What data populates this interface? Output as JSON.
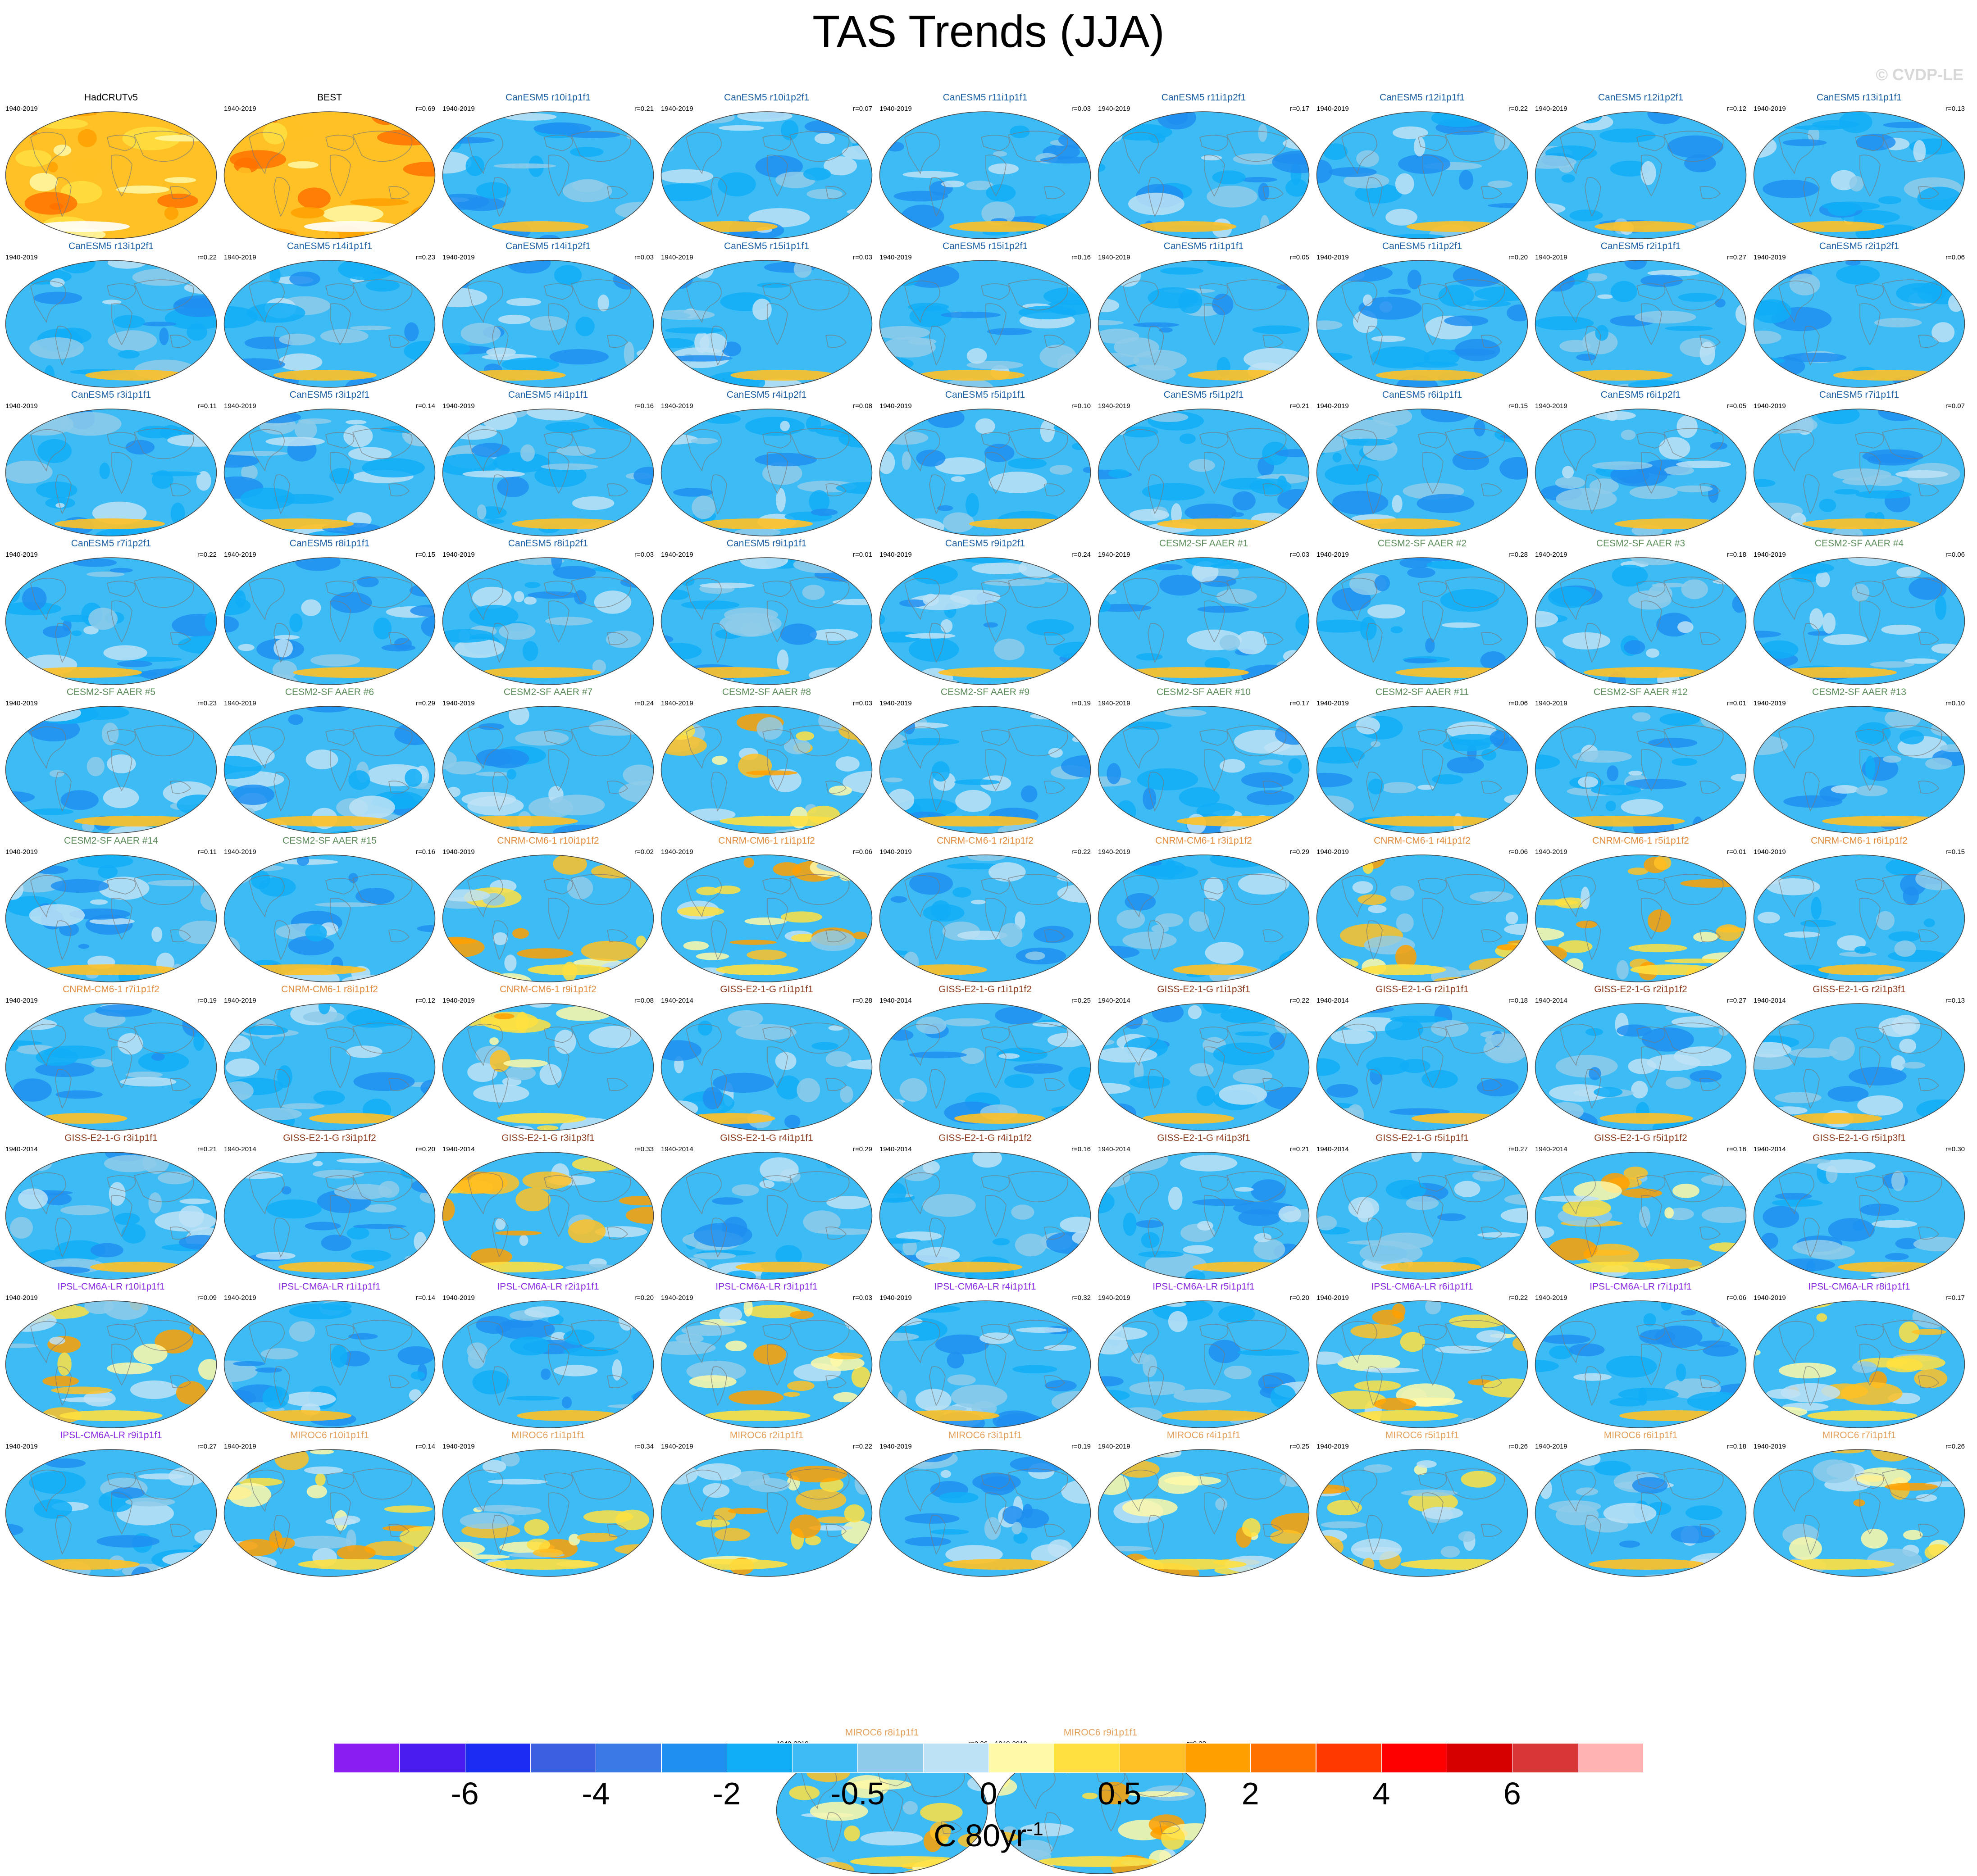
{
  "title": "TAS Trends (JJA)",
  "credit": "© CVDP-LE",
  "colors": {
    "HadCRUTv5": "#000000",
    "CanESM5": "#1a5fa3",
    "CESM2-SF AAER": "#5b8c5a",
    "CNRM-CM6-1": "#e08a3a",
    "GISS-E2-1-G": "#8b3a1e",
    "IPSL-CM6A-LR": "#8a2be2",
    "MIROC6": "#e3a05a"
  },
  "panels": [
    {
      "title": "HadCRUTv5",
      "family": "HadCRUTv5",
      "period": "1940-2019",
      "r": "",
      "style": "warm"
    },
    {
      "title": "BEST",
      "family": "HadCRUTv5",
      "period": "1940-2019",
      "r": "r=0.69",
      "style": "warm"
    },
    {
      "title": "CanESM5 r10i1p1f1",
      "family": "CanESM5",
      "period": "1940-2019",
      "r": "r=0.21",
      "style": "cool"
    },
    {
      "title": "CanESM5 r10i1p2f1",
      "family": "CanESM5",
      "period": "1940-2019",
      "r": "r=0.07",
      "style": "cool"
    },
    {
      "title": "CanESM5 r11i1p1f1",
      "family": "CanESM5",
      "period": "1940-2019",
      "r": "r=0.03",
      "style": "cool"
    },
    {
      "title": "CanESM5 r11i1p2f1",
      "family": "CanESM5",
      "period": "1940-2019",
      "r": "r=0.17",
      "style": "cool"
    },
    {
      "title": "CanESM5 r12i1p1f1",
      "family": "CanESM5",
      "period": "1940-2019",
      "r": "r=0.22",
      "style": "cool"
    },
    {
      "title": "CanESM5 r12i1p2f1",
      "family": "CanESM5",
      "period": "1940-2019",
      "r": "r=0.12",
      "style": "cool"
    },
    {
      "title": "CanESM5 r13i1p1f1",
      "family": "CanESM5",
      "period": "1940-2019",
      "r": "r=0.13",
      "style": "cool"
    },
    {
      "title": "CanESM5 r13i1p2f1",
      "family": "CanESM5",
      "period": "1940-2019",
      "r": "r=0.22",
      "style": "cool"
    },
    {
      "title": "CanESM5 r14i1p1f1",
      "family": "CanESM5",
      "period": "1940-2019",
      "r": "r=0.23",
      "style": "cool"
    },
    {
      "title": "CanESM5 r14i1p2f1",
      "family": "CanESM5",
      "period": "1940-2019",
      "r": "r=0.03",
      "style": "cool"
    },
    {
      "title": "CanESM5 r15i1p1f1",
      "family": "CanESM5",
      "period": "1940-2019",
      "r": "r=0.03",
      "style": "cool"
    },
    {
      "title": "CanESM5 r15i1p2f1",
      "family": "CanESM5",
      "period": "1940-2019",
      "r": "r=0.16",
      "style": "cool"
    },
    {
      "title": "CanESM5 r1i1p1f1",
      "family": "CanESM5",
      "period": "1940-2019",
      "r": "r=0.05",
      "style": "cool"
    },
    {
      "title": "CanESM5 r1i1p2f1",
      "family": "CanESM5",
      "period": "1940-2019",
      "r": "r=0.20",
      "style": "cool"
    },
    {
      "title": "CanESM5 r2i1p1f1",
      "family": "CanESM5",
      "period": "1940-2019",
      "r": "r=0.27",
      "style": "cool"
    },
    {
      "title": "CanESM5 r2i1p2f1",
      "family": "CanESM5",
      "period": "1940-2019",
      "r": "r=0.06",
      "style": "cool"
    },
    {
      "title": "CanESM5 r3i1p1f1",
      "family": "CanESM5",
      "period": "1940-2019",
      "r": "r=0.11",
      "style": "cool"
    },
    {
      "title": "CanESM5 r3i1p2f1",
      "family": "CanESM5",
      "period": "1940-2019",
      "r": "r=0.14",
      "style": "cool"
    },
    {
      "title": "CanESM5 r4i1p1f1",
      "family": "CanESM5",
      "period": "1940-2019",
      "r": "r=0.16",
      "style": "cool"
    },
    {
      "title": "CanESM5 r4i1p2f1",
      "family": "CanESM5",
      "period": "1940-2019",
      "r": "r=0.08",
      "style": "cool"
    },
    {
      "title": "CanESM5 r5i1p1f1",
      "family": "CanESM5",
      "period": "1940-2019",
      "r": "r=0.10",
      "style": "cool"
    },
    {
      "title": "CanESM5 r5i1p2f1",
      "family": "CanESM5",
      "period": "1940-2019",
      "r": "r=0.21",
      "style": "cool"
    },
    {
      "title": "CanESM5 r6i1p1f1",
      "family": "CanESM5",
      "period": "1940-2019",
      "r": "r=0.15",
      "style": "cool"
    },
    {
      "title": "CanESM5 r6i1p2f1",
      "family": "CanESM5",
      "period": "1940-2019",
      "r": "r=0.05",
      "style": "cool"
    },
    {
      "title": "CanESM5 r7i1p1f1",
      "family": "CanESM5",
      "period": "1940-2019",
      "r": "r=0.07",
      "style": "cool"
    },
    {
      "title": "CanESM5 r7i1p2f1",
      "family": "CanESM5",
      "period": "1940-2019",
      "r": "r=0.22",
      "style": "cool"
    },
    {
      "title": "CanESM5 r8i1p1f1",
      "family": "CanESM5",
      "period": "1940-2019",
      "r": "r=0.15",
      "style": "cool"
    },
    {
      "title": "CanESM5 r8i1p2f1",
      "family": "CanESM5",
      "period": "1940-2019",
      "r": "r=0.03",
      "style": "cool"
    },
    {
      "title": "CanESM5 r9i1p1f1",
      "family": "CanESM5",
      "period": "1940-2019",
      "r": "r=0.01",
      "style": "cool"
    },
    {
      "title": "CanESM5 r9i1p2f1",
      "family": "CanESM5",
      "period": "1940-2019",
      "r": "r=0.24",
      "style": "cool"
    },
    {
      "title": "CESM2-SF AAER #1",
      "family": "CESM2-SF AAER",
      "period": "1940-2019",
      "r": "r=0.03",
      "style": "cool"
    },
    {
      "title": "CESM2-SF AAER #2",
      "family": "CESM2-SF AAER",
      "period": "1940-2019",
      "r": "r=0.28",
      "style": "cool"
    },
    {
      "title": "CESM2-SF AAER #3",
      "family": "CESM2-SF AAER",
      "period": "1940-2019",
      "r": "r=0.18",
      "style": "cool"
    },
    {
      "title": "CESM2-SF AAER #4",
      "family": "CESM2-SF AAER",
      "period": "1940-2019",
      "r": "r=0.06",
      "style": "cool"
    },
    {
      "title": "CESM2-SF AAER #5",
      "family": "CESM2-SF AAER",
      "period": "1940-2019",
      "r": "r=0.23",
      "style": "cool"
    },
    {
      "title": "CESM2-SF AAER #6",
      "family": "CESM2-SF AAER",
      "period": "1940-2019",
      "r": "r=0.29",
      "style": "cool"
    },
    {
      "title": "CESM2-SF AAER #7",
      "family": "CESM2-SF AAER",
      "period": "1940-2019",
      "r": "r=0.24",
      "style": "cool"
    },
    {
      "title": "CESM2-SF AAER #8",
      "family": "CESM2-SF AAER",
      "period": "1940-2019",
      "r": "r=0.03",
      "style": "mixed"
    },
    {
      "title": "CESM2-SF AAER #9",
      "family": "CESM2-SF AAER",
      "period": "1940-2019",
      "r": "r=0.19",
      "style": "cool"
    },
    {
      "title": "CESM2-SF AAER #10",
      "family": "CESM2-SF AAER",
      "period": "1940-2019",
      "r": "r=0.17",
      "style": "cool"
    },
    {
      "title": "CESM2-SF AAER #11",
      "family": "CESM2-SF AAER",
      "period": "1940-2019",
      "r": "r=0.06",
      "style": "cool"
    },
    {
      "title": "CESM2-SF AAER #12",
      "family": "CESM2-SF AAER",
      "period": "1940-2019",
      "r": "r=0.01",
      "style": "cool"
    },
    {
      "title": "CESM2-SF AAER #13",
      "family": "CESM2-SF AAER",
      "period": "1940-2019",
      "r": "r=0.10",
      "style": "cool"
    },
    {
      "title": "CESM2-SF AAER #14",
      "family": "CESM2-SF AAER",
      "period": "1940-2019",
      "r": "r=0.11",
      "style": "cool"
    },
    {
      "title": "CESM2-SF AAER #15",
      "family": "CESM2-SF AAER",
      "period": "1940-2019",
      "r": "r=0.16",
      "style": "cool"
    },
    {
      "title": "CNRM-CM6-1 r10i1p1f2",
      "family": "CNRM-CM6-1",
      "period": "1940-2019",
      "r": "r=0.02",
      "style": "mixed"
    },
    {
      "title": "CNRM-CM6-1 r1i1p1f2",
      "family": "CNRM-CM6-1",
      "period": "1940-2019",
      "r": "r=0.06",
      "style": "mixed"
    },
    {
      "title": "CNRM-CM6-1 r2i1p1f2",
      "family": "CNRM-CM6-1",
      "period": "1940-2019",
      "r": "r=0.22",
      "style": "cool"
    },
    {
      "title": "CNRM-CM6-1 r3i1p1f2",
      "family": "CNRM-CM6-1",
      "period": "1940-2019",
      "r": "r=0.29",
      "style": "cool"
    },
    {
      "title": "CNRM-CM6-1 r4i1p1f2",
      "family": "CNRM-CM6-1",
      "period": "1940-2019",
      "r": "r=0.06",
      "style": "mixed"
    },
    {
      "title": "CNRM-CM6-1 r5i1p1f2",
      "family": "CNRM-CM6-1",
      "period": "1940-2019",
      "r": "r=0.01",
      "style": "mixed"
    },
    {
      "title": "CNRM-CM6-1 r6i1p1f2",
      "family": "CNRM-CM6-1",
      "period": "1940-2019",
      "r": "r=0.15",
      "style": "cool"
    },
    {
      "title": "CNRM-CM6-1 r7i1p1f2",
      "family": "CNRM-CM6-1",
      "period": "1940-2019",
      "r": "r=0.19",
      "style": "cool"
    },
    {
      "title": "CNRM-CM6-1 r8i1p1f2",
      "family": "CNRM-CM6-1",
      "period": "1940-2019",
      "r": "r=0.12",
      "style": "cool"
    },
    {
      "title": "CNRM-CM6-1 r9i1p1f2",
      "family": "CNRM-CM6-1",
      "period": "1940-2019",
      "r": "r=0.08",
      "style": "mixed"
    },
    {
      "title": "GISS-E2-1-G r1i1p1f1",
      "family": "GISS-E2-1-G",
      "period": "1940-2014",
      "r": "r=0.28",
      "style": "cool"
    },
    {
      "title": "GISS-E2-1-G r1i1p1f2",
      "family": "GISS-E2-1-G",
      "period": "1940-2014",
      "r": "r=0.25",
      "style": "cool"
    },
    {
      "title": "GISS-E2-1-G r1i1p3f1",
      "family": "GISS-E2-1-G",
      "period": "1940-2014",
      "r": "r=0.22",
      "style": "cool"
    },
    {
      "title": "GISS-E2-1-G r2i1p1f1",
      "family": "GISS-E2-1-G",
      "period": "1940-2014",
      "r": "r=0.18",
      "style": "cool"
    },
    {
      "title": "GISS-E2-1-G r2i1p1f2",
      "family": "GISS-E2-1-G",
      "period": "1940-2014",
      "r": "r=0.27",
      "style": "cool"
    },
    {
      "title": "GISS-E2-1-G r2i1p3f1",
      "family": "GISS-E2-1-G",
      "period": "1940-2014",
      "r": "r=0.13",
      "style": "cool"
    },
    {
      "title": "GISS-E2-1-G r3i1p1f1",
      "family": "GISS-E2-1-G",
      "period": "1940-2014",
      "r": "r=0.21",
      "style": "cool"
    },
    {
      "title": "GISS-E2-1-G r3i1p1f2",
      "family": "GISS-E2-1-G",
      "period": "1940-2014",
      "r": "r=0.20",
      "style": "cool"
    },
    {
      "title": "GISS-E2-1-G r3i1p3f1",
      "family": "GISS-E2-1-G",
      "period": "1940-2014",
      "r": "r=0.33",
      "style": "mixed"
    },
    {
      "title": "GISS-E2-1-G r4i1p1f1",
      "family": "GISS-E2-1-G",
      "period": "1940-2014",
      "r": "r=0.29",
      "style": "cool"
    },
    {
      "title": "GISS-E2-1-G r4i1p1f2",
      "family": "GISS-E2-1-G",
      "period": "1940-2014",
      "r": "r=0.16",
      "style": "cool"
    },
    {
      "title": "GISS-E2-1-G r4i1p3f1",
      "family": "GISS-E2-1-G",
      "period": "1940-2014",
      "r": "r=0.21",
      "style": "cool"
    },
    {
      "title": "GISS-E2-1-G r5i1p1f1",
      "family": "GISS-E2-1-G",
      "period": "1940-2014",
      "r": "r=0.27",
      "style": "cool"
    },
    {
      "title": "GISS-E2-1-G r5i1p1f2",
      "family": "GISS-E2-1-G",
      "period": "1940-2014",
      "r": "r=0.16",
      "style": "mixed"
    },
    {
      "title": "GISS-E2-1-G r5i1p3f1",
      "family": "GISS-E2-1-G",
      "period": "1940-2014",
      "r": "r=0.30",
      "style": "cool"
    },
    {
      "title": "IPSL-CM6A-LR r10i1p1f1",
      "family": "IPSL-CM6A-LR",
      "period": "1940-2019",
      "r": "r=0.09",
      "style": "mixed"
    },
    {
      "title": "IPSL-CM6A-LR r1i1p1f1",
      "family": "IPSL-CM6A-LR",
      "period": "1940-2019",
      "r": "r=0.14",
      "style": "cool"
    },
    {
      "title": "IPSL-CM6A-LR r2i1p1f1",
      "family": "IPSL-CM6A-LR",
      "period": "1940-2019",
      "r": "r=0.20",
      "style": "cool"
    },
    {
      "title": "IPSL-CM6A-LR r3i1p1f1",
      "family": "IPSL-CM6A-LR",
      "period": "1940-2019",
      "r": "r=0.03",
      "style": "mixed"
    },
    {
      "title": "IPSL-CM6A-LR r4i1p1f1",
      "family": "IPSL-CM6A-LR",
      "period": "1940-2019",
      "r": "r=0.32",
      "style": "cool"
    },
    {
      "title": "IPSL-CM6A-LR r5i1p1f1",
      "family": "IPSL-CM6A-LR",
      "period": "1940-2019",
      "r": "r=0.20",
      "style": "cool"
    },
    {
      "title": "IPSL-CM6A-LR r6i1p1f1",
      "family": "IPSL-CM6A-LR",
      "period": "1940-2019",
      "r": "r=0.22",
      "style": "mixed"
    },
    {
      "title": "IPSL-CM6A-LR r7i1p1f1",
      "family": "IPSL-CM6A-LR",
      "period": "1940-2019",
      "r": "r=0.06",
      "style": "cool"
    },
    {
      "title": "IPSL-CM6A-LR r8i1p1f1",
      "family": "IPSL-CM6A-LR",
      "period": "1940-2019",
      "r": "r=0.17",
      "style": "mixed"
    },
    {
      "title": "IPSL-CM6A-LR r9i1p1f1",
      "family": "IPSL-CM6A-LR",
      "period": "1940-2019",
      "r": "r=0.27",
      "style": "cool"
    },
    {
      "title": "MIROC6 r10i1p1f1",
      "family": "MIROC6",
      "period": "1940-2019",
      "r": "r=0.14",
      "style": "mixed"
    },
    {
      "title": "MIROC6 r1i1p1f1",
      "family": "MIROC6",
      "period": "1940-2019",
      "r": "r=0.34",
      "style": "mixed"
    },
    {
      "title": "MIROC6 r2i1p1f1",
      "family": "MIROC6",
      "period": "1940-2019",
      "r": "r=0.22",
      "style": "mixed"
    },
    {
      "title": "MIROC6 r3i1p1f1",
      "family": "MIROC6",
      "period": "1940-2019",
      "r": "r=0.19",
      "style": "cool"
    },
    {
      "title": "MIROC6 r4i1p1f1",
      "family": "MIROC6",
      "period": "1940-2019",
      "r": "r=0.25",
      "style": "mixed"
    },
    {
      "title": "MIROC6 r5i1p1f1",
      "family": "MIROC6",
      "period": "1940-2019",
      "r": "r=0.26",
      "style": "mixed"
    },
    {
      "title": "MIROC6 r6i1p1f1",
      "family": "MIROC6",
      "period": "1940-2019",
      "r": "r=0.18",
      "style": "cool"
    },
    {
      "title": "MIROC6 r7i1p1f1",
      "family": "MIROC6",
      "period": "1940-2019",
      "r": "r=0.26",
      "style": "mixed"
    },
    {
      "title": "MIROC6 r8i1p1f1",
      "family": "MIROC6",
      "period": "1940-2019",
      "r": "r=0.26",
      "style": "mixed"
    },
    {
      "title": "MIROC6 r9i1p1f1",
      "family": "MIROC6",
      "period": "1940-2019",
      "r": "r=0.28",
      "style": "mixed"
    }
  ],
  "colorbar": {
    "colors": [
      "#8a1df2",
      "#4a1cf0",
      "#1c2cf2",
      "#3b5fe0",
      "#3a7ae6",
      "#1f8ff0",
      "#10aef7",
      "#3dbbf5",
      "#8ecbea",
      "#bde2f6",
      "#fff9a8",
      "#ffe040",
      "#ffc125",
      "#ffa000",
      "#ff7200",
      "#ff3a00",
      "#ff0000",
      "#d60000",
      "#d93737",
      "#ffb3b3"
    ],
    "tick_labels": [
      "-6",
      "-4",
      "-2",
      "-0.5",
      "0",
      "0.5",
      "2",
      "4",
      "6"
    ],
    "units": "C 80yr",
    "units_exponent": "-1"
  }
}
